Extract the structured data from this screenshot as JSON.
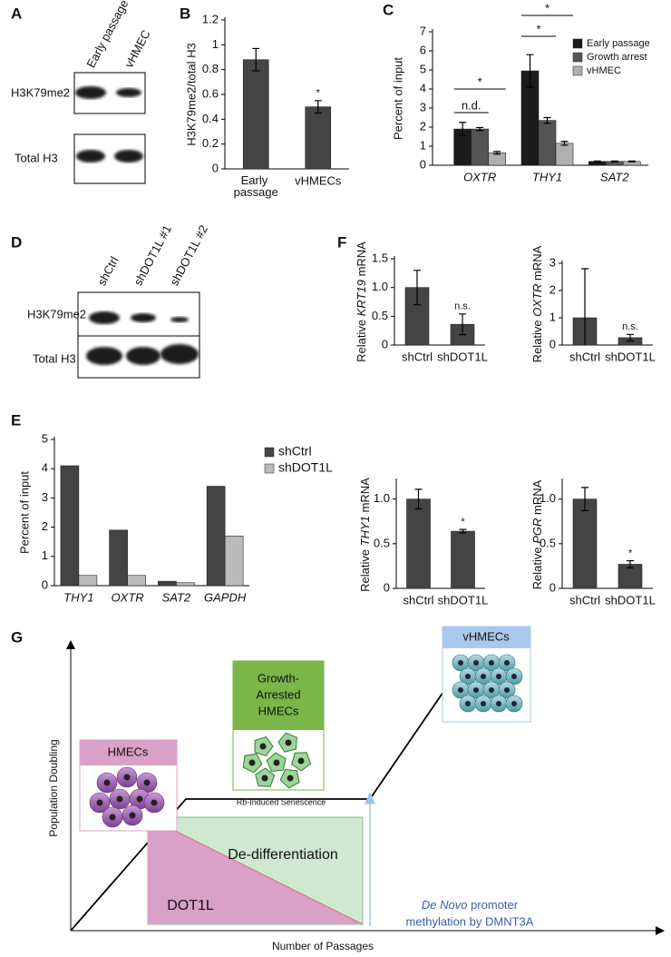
{
  "panel_labels": [
    "A",
    "B",
    "C",
    "D",
    "E",
    "F",
    "G"
  ],
  "blots": [
    {
      "lanes": [
        "Early passage",
        "vHMEC"
      ],
      "rows": [
        "H3K79me2",
        "Total H3"
      ]
    },
    {
      "lanes": [
        "shCtrl",
        "shDOT1L #1",
        "shDOT1L #2"
      ],
      "rows": [
        "H3K79me2",
        "Total H3"
      ]
    }
  ],
  "chart_data": [
    {
      "type": "bar",
      "ylabel": "H3K79me2/total H3",
      "categories": [
        "Early passage",
        "vHMECs"
      ],
      "values": [
        0.88,
        0.5
      ],
      "errors": [
        0.09,
        0.05
      ],
      "significance": [
        null,
        "*"
      ],
      "color": "#444444",
      "ylim": [
        0,
        1.2
      ],
      "yticks": [
        0,
        0.2,
        0.4,
        0.6,
        0.8,
        1,
        1.2
      ]
    },
    {
      "type": "bar",
      "ylabel": "Percent of input",
      "categories": [
        "OXTR",
        "THY1",
        "SAT2"
      ],
      "italic_categories": true,
      "series": [
        {
          "name": "Early passage",
          "color": "#1a1a1a",
          "values": [
            1.9,
            4.95,
            0.2
          ],
          "errors": [
            0.35,
            0.85,
            0.02
          ]
        },
        {
          "name": "Growth arrest",
          "color": "#555555",
          "values": [
            1.9,
            2.35,
            0.2
          ],
          "errors": [
            0.08,
            0.15,
            0.02
          ]
        },
        {
          "name": "vHMEC",
          "color": "#b0b0b0",
          "values": [
            0.65,
            1.15,
            0.2
          ],
          "errors": [
            0.07,
            0.1,
            0.02
          ]
        }
      ],
      "brackets": [
        {
          "text": "n.d.",
          "category": 0,
          "from": 0,
          "to": 1
        },
        {
          "text": "*",
          "category": 0,
          "from": 0,
          "to": 2
        },
        {
          "text": "*",
          "category": 1,
          "from": 0,
          "to": 1
        },
        {
          "text": "*",
          "category": 1,
          "from": 0,
          "to": 2
        }
      ],
      "ylim": [
        0,
        7
      ],
      "yticks": [
        0,
        1,
        2,
        3,
        4,
        5,
        6,
        7
      ]
    },
    {
      "type": "bar",
      "ylabel": "Percent of input",
      "categories": [
        "THY1",
        "OXTR",
        "SAT2",
        "GAPDH"
      ],
      "italic_categories": true,
      "series": [
        {
          "name": "shCtrl",
          "color": "#444444",
          "values": [
            4.1,
            1.9,
            0.15,
            3.4
          ]
        },
        {
          "name": "shDOT1L",
          "color": "#bbbbbb",
          "values": [
            0.35,
            0.35,
            0.1,
            1.7
          ]
        }
      ],
      "ylim": [
        0,
        5
      ],
      "yticks": [
        0,
        1,
        2,
        3,
        4,
        5
      ]
    },
    {
      "type": "bar",
      "ylabel": {
        "prefix": "Relative",
        "gene": "KRT19",
        "suffix": "mRNA"
      },
      "categories": [
        "shCtrl",
        "shDOT1L"
      ],
      "values": [
        1.0,
        0.36
      ],
      "errors": [
        0.3,
        0.18
      ],
      "significance": [
        null,
        "n.s."
      ],
      "color": "#444444",
      "ylim": [
        0,
        1.5
      ],
      "yticks": [
        0,
        0.5,
        {
          "value": 1,
          "label": "1.0"
        },
        1.5
      ]
    },
    {
      "type": "bar",
      "ylabel": {
        "prefix": "Relative",
        "gene": "OXTR",
        "suffix": "mRNA"
      },
      "categories": [
        "shCtrl",
        "shDOT1L"
      ],
      "values": [
        1.0,
        0.27
      ],
      "errors": [
        1.8,
        0.12
      ],
      "significance": [
        null,
        "n.s."
      ],
      "color": "#444444",
      "ylim": [
        0,
        3
      ],
      "yticks": [
        0,
        1,
        2,
        3
      ]
    },
    {
      "type": "bar",
      "ylabel": {
        "prefix": "Relative",
        "gene": "THY1",
        "suffix": "mRNA"
      },
      "categories": [
        "shCtrl",
        "shDOT1L"
      ],
      "values": [
        1.0,
        0.64
      ],
      "errors": [
        0.11,
        0.02
      ],
      "significance": [
        null,
        "*"
      ],
      "color": "#444444",
      "ylim": [
        0,
        1.2
      ],
      "yticks": [
        0,
        0.5,
        {
          "value": 1,
          "label": "1.0"
        }
      ]
    },
    {
      "type": "bar",
      "ylabel": {
        "prefix": "Relative",
        "gene": "PGR",
        "suffix": "mRNA"
      },
      "categories": [
        "shCtrl",
        "shDOT1L"
      ],
      "values": [
        1.0,
        0.27
      ],
      "errors": [
        0.13,
        0.04
      ],
      "significance": [
        null,
        "*"
      ],
      "color": "#444444",
      "ylim": [
        0,
        1.2
      ],
      "yticks": [
        0,
        0.5,
        {
          "value": 1,
          "label": "1.0"
        }
      ]
    }
  ],
  "diagram": {
    "y_axis": "Population Doubling",
    "x_axis": "Number of Passages",
    "hmecs": "HMECs",
    "growth_arrested": [
      "Growth-",
      "Arrested",
      "HMECs"
    ],
    "vhmecs": "vHMECs",
    "senescence": "Rb-Induced Senescence",
    "dedifferentiation": "De-differentiation",
    "dot1l": "DOT1L",
    "methylation": {
      "italic": "De Novo",
      "line1": "promoter",
      "line2": "methylation by DMNT3A"
    }
  }
}
